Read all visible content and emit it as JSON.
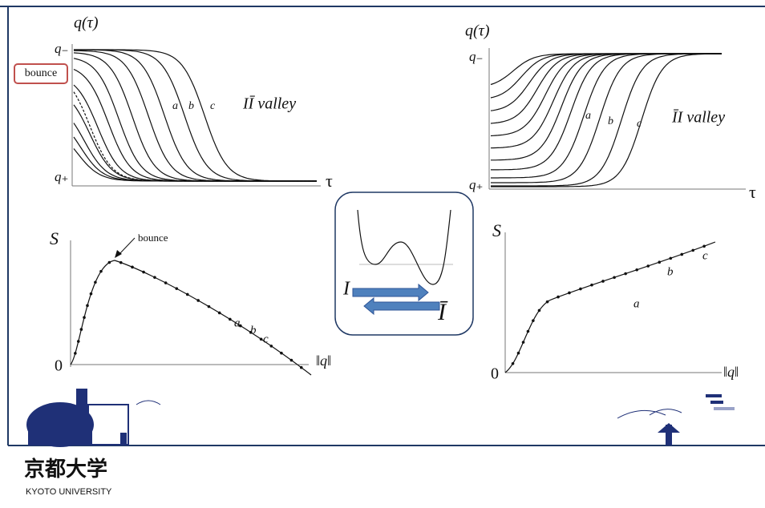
{
  "panels": {
    "top_left": {
      "y_label": "q(τ)",
      "y_top": "q₋",
      "y_bottom": "q₊",
      "marker": "bounce",
      "curve_labels": [
        "a",
        "b",
        "c"
      ],
      "annotation": "IĪ valley",
      "x_label": "τ"
    },
    "top_right": {
      "y_label": "q(τ)",
      "y_top": "q₋",
      "y_bottom": "q₊",
      "curve_labels": [
        "a",
        "b",
        "c"
      ],
      "annotation": "ĪI valley",
      "x_label": "τ"
    },
    "bottom_left": {
      "y_label": "S",
      "origin": "0",
      "arrow_label": "bounce",
      "curve_labels": [
        "a",
        "b",
        "c"
      ],
      "x_label": "‖q‖"
    },
    "bottom_right": {
      "y_label": "S",
      "origin": "0",
      "curve_labels": [
        "a",
        "b",
        "c"
      ],
      "x_label": "‖q‖"
    },
    "center": {
      "left": "I",
      "right": "Ī"
    }
  },
  "footer": {
    "name": "京都大学",
    "name_en": "KYOTO UNIVERSITY"
  }
}
